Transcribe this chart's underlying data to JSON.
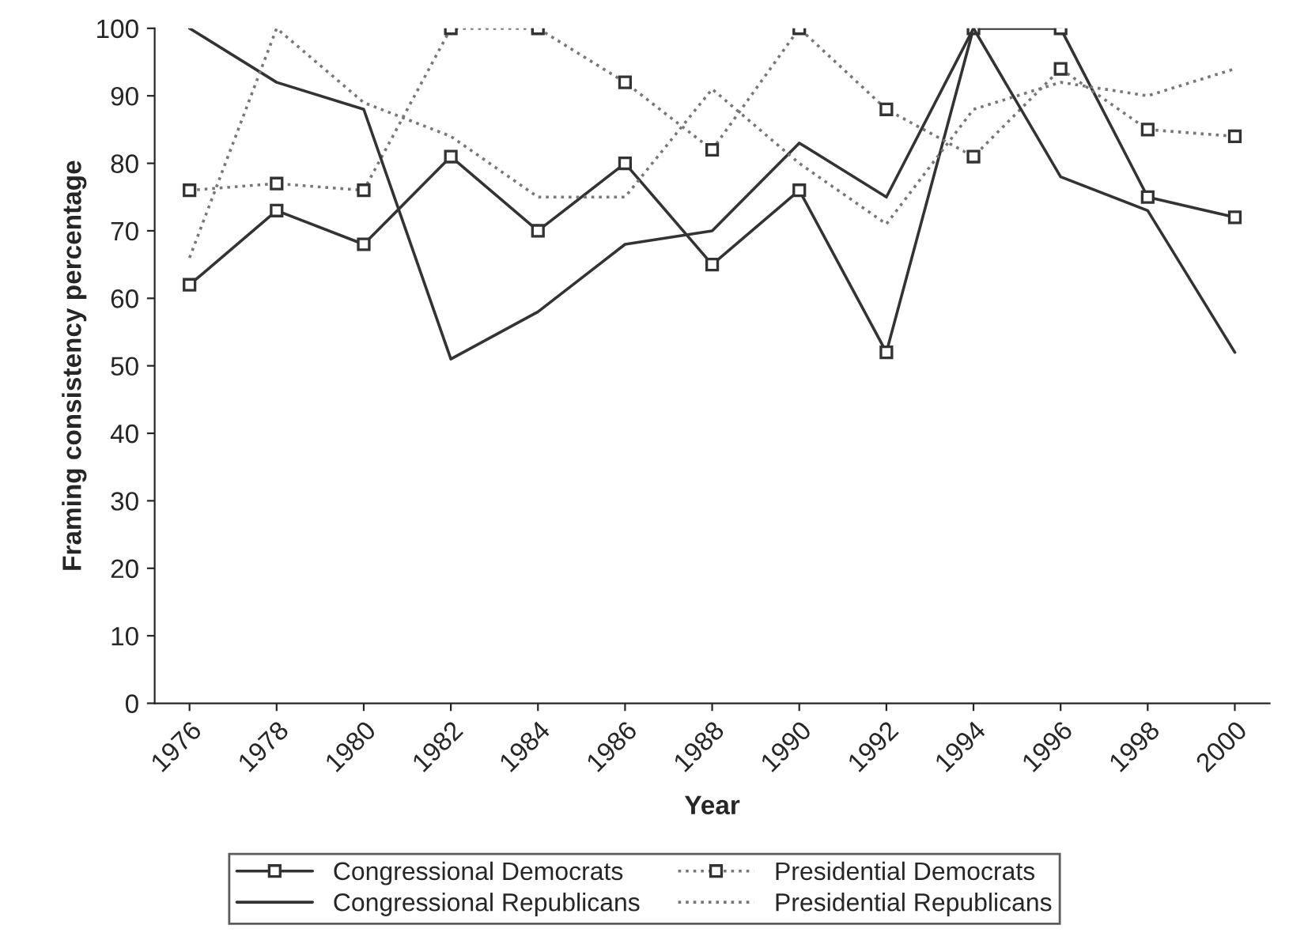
{
  "chart_data": {
    "type": "line",
    "xlabel": "Year",
    "ylabel": "Framing consistency percentage",
    "categories": [
      "1976",
      "1978",
      "1980",
      "1982",
      "1984",
      "1986",
      "1988",
      "1990",
      "1992",
      "1994",
      "1996",
      "1998",
      "2000"
    ],
    "series": [
      {
        "name": "Congressional Democrats",
        "color": "#333333",
        "marker": "square",
        "line_style": "solid",
        "values": [
          62,
          73,
          68,
          81,
          70,
          80,
          65,
          76,
          52,
          100,
          100,
          75,
          72
        ]
      },
      {
        "name": "Presidential Democrats",
        "color": "#777777",
        "marker": "square",
        "line_style": "dotted",
        "values": [
          76,
          77,
          76,
          100,
          100,
          92,
          82,
          100,
          88,
          81,
          94,
          85,
          84
        ]
      },
      {
        "name": "Congressional Republicans",
        "color": "#333333",
        "marker": "none",
        "line_style": "solid",
        "values": [
          100,
          92,
          88,
          51,
          58,
          68,
          70,
          83,
          75,
          100,
          78,
          73,
          52
        ]
      },
      {
        "name": "Presidential Republicans",
        "color": "#777777",
        "marker": "none",
        "line_style": "dotted",
        "values": [
          66,
          100,
          89,
          84,
          75,
          75,
          91,
          80,
          71,
          88,
          92,
          90,
          94
        ]
      }
    ],
    "ylim": [
      0,
      100
    ],
    "yticks": [
      0,
      10,
      20,
      30,
      40,
      50,
      60,
      70,
      80,
      90,
      100
    ],
    "grid": false,
    "legend": "bottom"
  }
}
